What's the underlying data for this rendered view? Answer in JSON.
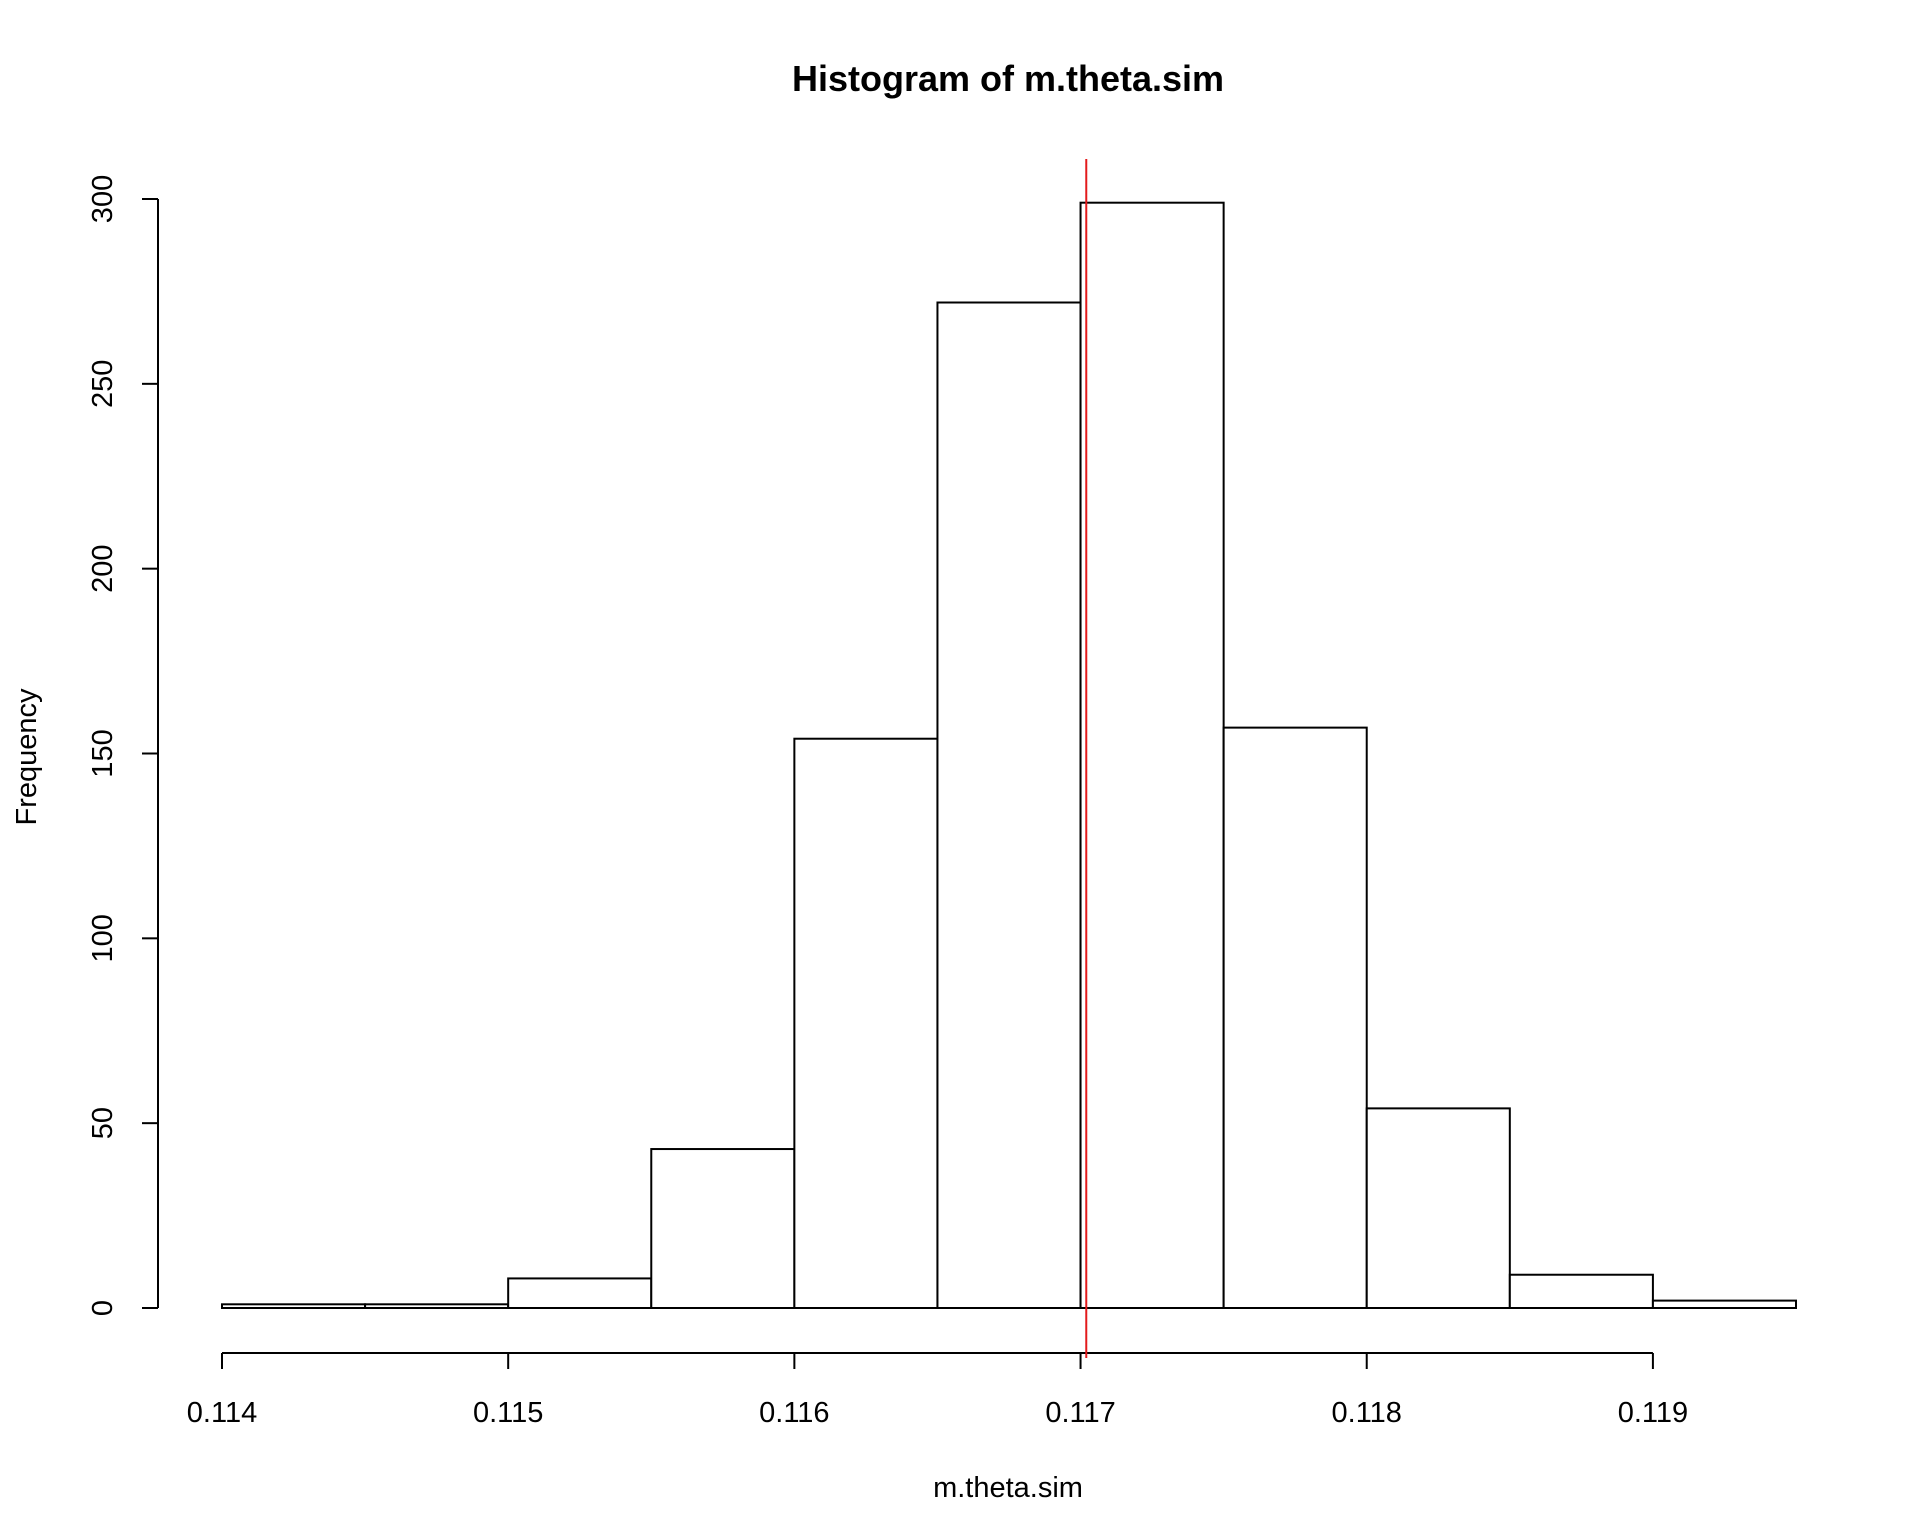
{
  "chart_data": {
    "type": "bar",
    "title": "Histogram of m.theta.sim",
    "xlabel": "m.theta.sim",
    "ylabel": "Frequency",
    "bins": [
      {
        "start": 0.114,
        "end": 0.1145,
        "count": 1
      },
      {
        "start": 0.1145,
        "end": 0.115,
        "count": 1
      },
      {
        "start": 0.115,
        "end": 0.1155,
        "count": 8
      },
      {
        "start": 0.1155,
        "end": 0.116,
        "count": 43
      },
      {
        "start": 0.116,
        "end": 0.1165,
        "count": 154
      },
      {
        "start": 0.1165,
        "end": 0.117,
        "count": 272
      },
      {
        "start": 0.117,
        "end": 0.1175,
        "count": 299
      },
      {
        "start": 0.1175,
        "end": 0.118,
        "count": 157
      },
      {
        "start": 0.118,
        "end": 0.1185,
        "count": 54
      },
      {
        "start": 0.1185,
        "end": 0.119,
        "count": 9
      },
      {
        "start": 0.119,
        "end": 0.1195,
        "count": 2
      }
    ],
    "xticks": [
      "0.114",
      "0.115",
      "0.116",
      "0.117",
      "0.118",
      "0.119"
    ],
    "yticks": [
      "0",
      "50",
      "100",
      "150",
      "200",
      "250",
      "300"
    ],
    "xlim": [
      0.114,
      0.1195
    ],
    "ylim": [
      0,
      300
    ],
    "vline": {
      "x": 0.11702,
      "color": "#e31a1c"
    },
    "grid": false,
    "legend": "none"
  }
}
